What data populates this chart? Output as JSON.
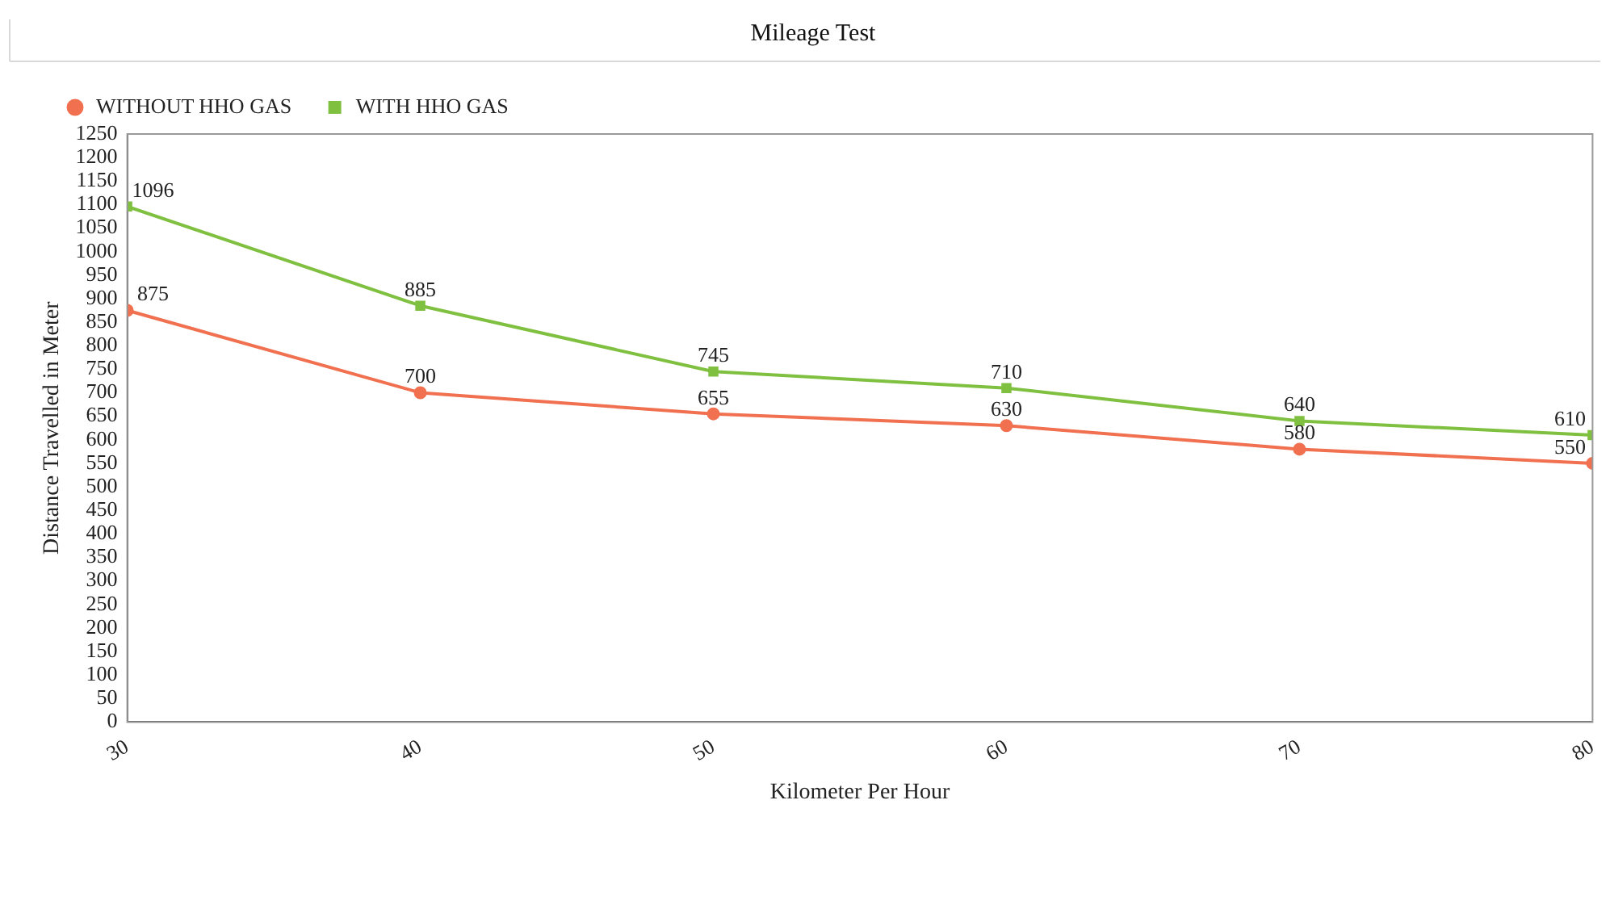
{
  "chart_data": {
    "type": "line",
    "title": "Mileage Test",
    "xlabel": "Kilometer Per Hour",
    "ylabel": "Distance Travelled in Meter",
    "x": [
      30,
      40,
      50,
      60,
      70,
      80
    ],
    "series": [
      {
        "name": "WITHOUT HHO GAS",
        "color": "#f07050",
        "marker": "circle",
        "values": [
          875,
          700,
          655,
          630,
          580,
          550
        ]
      },
      {
        "name": "WITH HHO GAS",
        "color": "#80c040",
        "marker": "square",
        "values": [
          1096,
          885,
          745,
          710,
          640,
          610
        ]
      }
    ],
    "xlim": [
      30,
      80
    ],
    "xticks": [
      30,
      40,
      50,
      60,
      70,
      80
    ],
    "ylim": [
      0,
      1250
    ],
    "yticks": [
      0,
      50,
      100,
      150,
      200,
      250,
      300,
      350,
      400,
      450,
      500,
      550,
      600,
      650,
      700,
      750,
      800,
      850,
      900,
      950,
      1000,
      1050,
      1100,
      1150,
      1200,
      1250
    ],
    "grid": false,
    "legend": "top left",
    "data_labels": true,
    "line_style": "solid"
  }
}
